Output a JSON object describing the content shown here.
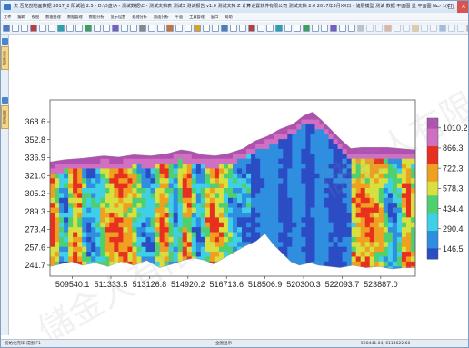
{
  "window": {
    "title": "文 吾龙剖地面数据 2017_2 阳试验 2.5 - D:\\D盘\\A - 测试数据\\C - 测试文档表 测试3 测试报告 v1.0 测试文档 Z 计算设置软件有限公司 测试文档 2.0 2017年3月XX日 - 储层模型 测试 数据 平面图 显 平面图 Nr - 1(C)"
  },
  "menu": {
    "items": [
      "文件",
      "编辑",
      "视图",
      "数据处理",
      "数据管理",
      "数据分析",
      "显示设置",
      "处理分析",
      "剖面分析",
      "平面",
      "工具管理",
      "窗口",
      "帮助"
    ]
  },
  "sidebar": {
    "tab1": "显示数据",
    "tab2": "编辑数据"
  },
  "status": {
    "left": "初始化完毕  成图 F1",
    "mid": "全图显示",
    "coords": "528441.04, 6114022.60"
  },
  "watermark": "儲金人有限",
  "chart_data": {
    "type": "heatmap",
    "title": "",
    "xlabel": "",
    "ylabel": "",
    "x_ticks": [
      "509540.1",
      "511333.5",
      "513126.8",
      "514920.2",
      "516713.6",
      "518506.9",
      "520300.3",
      "522093.7",
      "523887.0"
    ],
    "y_ticks": [
      "368.6",
      "352.8",
      "336.9",
      "321.0",
      "305.2",
      "289.3",
      "273.4",
      "257.6",
      "241.7"
    ],
    "colorbar_ticks": [
      "1010.2",
      "866.3",
      "722.3",
      "578.3",
      "434.4",
      "290.4",
      "146.5"
    ],
    "xlim": [
      508500,
      525500
    ],
    "ylim": [
      233,
      378
    ],
    "colorbar_range": [
      75,
      1080
    ],
    "colormap": [
      "#2b4cc4",
      "#2f8ee0",
      "#3fd0e8",
      "#4fd070",
      "#d8e040",
      "#f0a020",
      "#e83020",
      "#d070c0",
      "#b050b0"
    ],
    "top_surface": [
      [
        508500,
        327
      ],
      [
        509200,
        329
      ],
      [
        510000,
        330
      ],
      [
        511000,
        332
      ],
      [
        511700,
        331
      ],
      [
        512400,
        333
      ],
      [
        513200,
        332
      ],
      [
        514000,
        334
      ],
      [
        514600,
        337
      ],
      [
        515000,
        336
      ],
      [
        515600,
        333
      ],
      [
        516200,
        332
      ],
      [
        516800,
        334
      ],
      [
        517500,
        338
      ],
      [
        518000,
        344
      ],
      [
        518600,
        348
      ],
      [
        519200,
        354
      ],
      [
        519800,
        358
      ],
      [
        520300,
        365
      ],
      [
        520700,
        368
      ],
      [
        521100,
        362
      ],
      [
        521500,
        355
      ],
      [
        522000,
        346
      ],
      [
        522500,
        338
      ],
      [
        523000,
        339
      ],
      [
        523600,
        339
      ],
      [
        524200,
        339
      ],
      [
        524800,
        338
      ],
      [
        525500,
        337
      ]
    ],
    "bottom_surface": [
      [
        508500,
        241
      ],
      [
        509000,
        243
      ],
      [
        509500,
        245
      ],
      [
        510000,
        242
      ],
      [
        510600,
        244
      ],
      [
        511200,
        241
      ],
      [
        511800,
        245
      ],
      [
        512400,
        242
      ],
      [
        513000,
        246
      ],
      [
        513600,
        240
      ],
      [
        514200,
        243
      ],
      [
        514700,
        246
      ],
      [
        515200,
        248
      ],
      [
        515700,
        246
      ],
      [
        516100,
        243
      ],
      [
        516600,
        248
      ],
      [
        517100,
        253
      ],
      [
        517600,
        258
      ],
      [
        518100,
        262
      ],
      [
        518500,
        268
      ],
      [
        518900,
        259
      ],
      [
        519300,
        252
      ],
      [
        519700,
        245
      ],
      [
        520100,
        242
      ],
      [
        520600,
        244
      ],
      [
        521000,
        242
      ],
      [
        521500,
        241
      ],
      [
        522000,
        240
      ],
      [
        522600,
        242
      ],
      [
        523200,
        240
      ],
      [
        523800,
        241
      ],
      [
        524400,
        239
      ],
      [
        525000,
        240
      ],
      [
        525500,
        240
      ]
    ]
  }
}
